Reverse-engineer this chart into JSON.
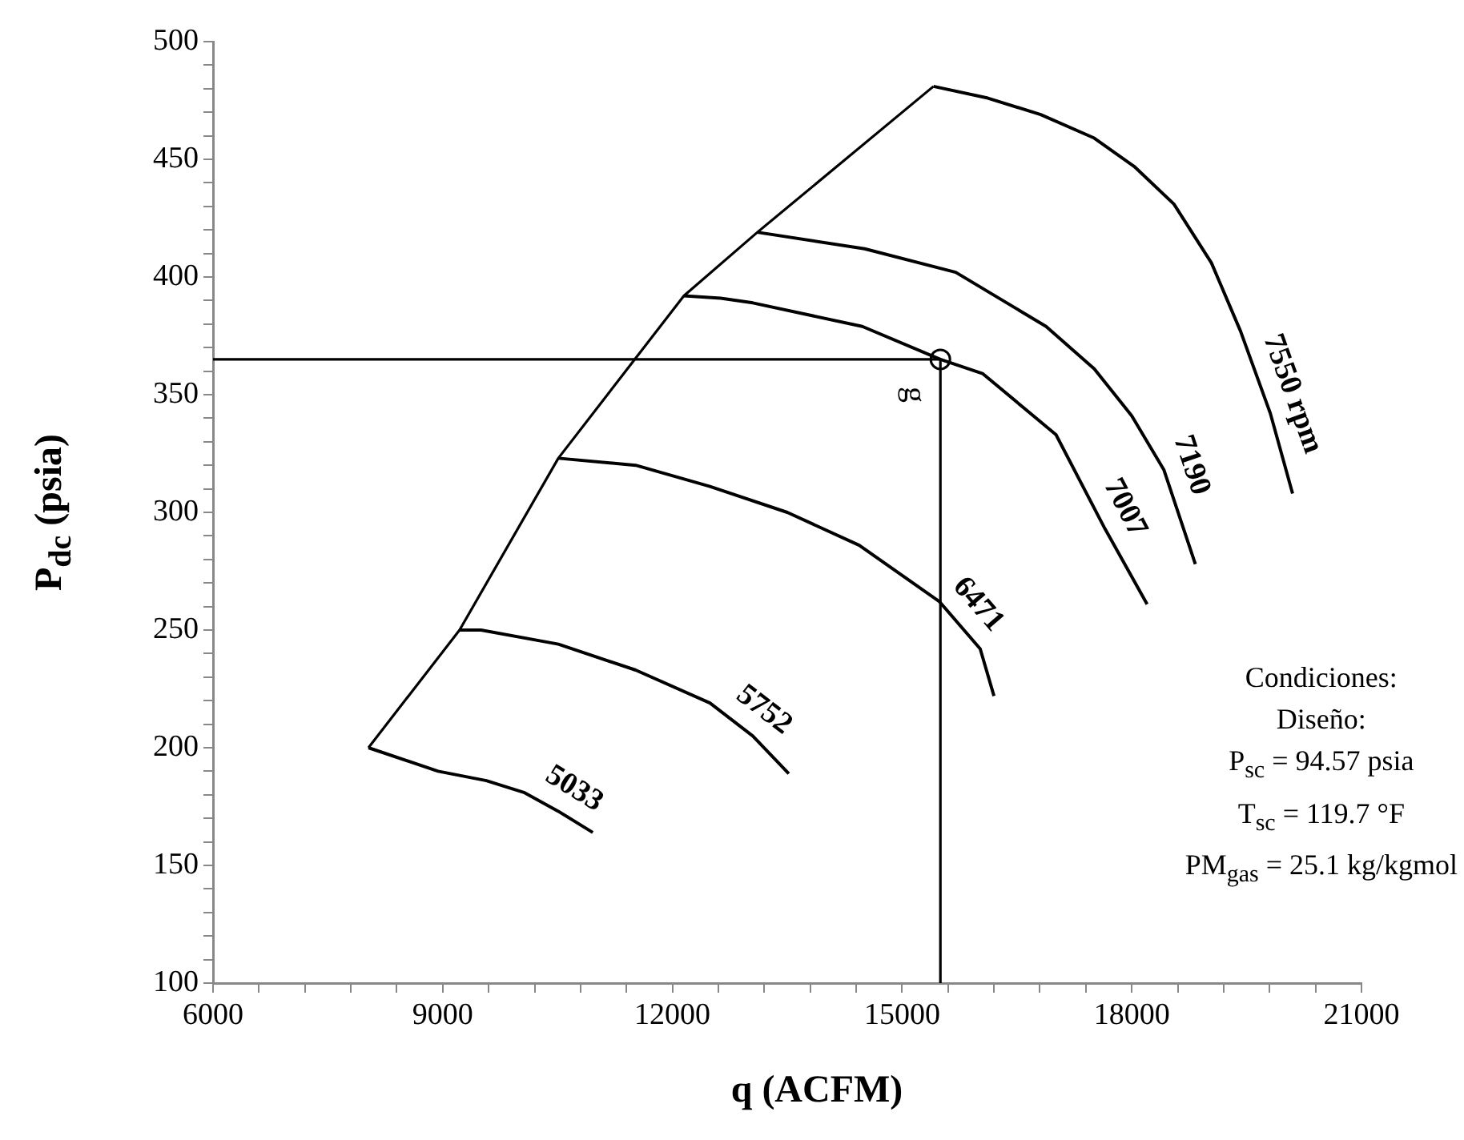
{
  "chart_data": {
    "type": "line",
    "xlabel": "q (ACFM)",
    "ylabel": "P$_{dc}$ (psia)",
    "xlim": [
      6000,
      21000
    ],
    "ylim": [
      100,
      500
    ],
    "xticks": [
      6000,
      {
        "value": 6600,
        "label": null
      },
      {
        "value": 7200,
        "label": null
      },
      {
        "value": 7800,
        "label": null
      },
      {
        "value": 8400,
        "label": null
      },
      9000,
      {
        "value": 9600,
        "label": null
      },
      {
        "value": 10200,
        "label": null
      },
      {
        "value": 10800,
        "label": null
      },
      {
        "value": 11400,
        "label": null
      },
      12000,
      {
        "value": 12600,
        "label": null
      },
      {
        "value": 13200,
        "label": null
      },
      {
        "value": 13800,
        "label": null
      },
      {
        "value": 14400,
        "label": null
      },
      15000,
      {
        "value": 15600,
        "label": null
      },
      {
        "value": 16200,
        "label": null
      },
      {
        "value": 16800,
        "label": null
      },
      {
        "value": 17400,
        "label": null
      },
      18000,
      {
        "value": 18600,
        "label": null
      },
      {
        "value": 19200,
        "label": null
      },
      {
        "value": 19800,
        "label": null
      },
      {
        "value": 20400,
        "label": null
      },
      21000
    ],
    "yticks": [
      100,
      {
        "value": 110,
        "label": null
      },
      {
        "value": 120,
        "label": null
      },
      {
        "value": 130,
        "label": null
      },
      {
        "value": 140,
        "label": null
      },
      150,
      {
        "value": 160,
        "label": null
      },
      {
        "value": 170,
        "label": null
      },
      {
        "value": 180,
        "label": null
      },
      {
        "value": 190,
        "label": null
      },
      200,
      {
        "value": 210,
        "label": null
      },
      {
        "value": 220,
        "label": null
      },
      {
        "value": 230,
        "label": null
      },
      {
        "value": 240,
        "label": null
      },
      250,
      {
        "value": 260,
        "label": null
      },
      {
        "value": 270,
        "label": null
      },
      {
        "value": 280,
        "label": null
      },
      {
        "value": 290,
        "label": null
      },
      300,
      {
        "value": 310,
        "label": null
      },
      {
        "value": 320,
        "label": null
      },
      {
        "value": 330,
        "label": null
      },
      {
        "value": 340,
        "label": null
      },
      350,
      {
        "value": 360,
        "label": null
      },
      {
        "value": 370,
        "label": null
      },
      {
        "value": 380,
        "label": null
      },
      {
        "value": 390,
        "label": null
      },
      400,
      {
        "value": 410,
        "label": null
      },
      {
        "value": 420,
        "label": null
      },
      {
        "value": 430,
        "label": null
      },
      {
        "value": 440,
        "label": null
      },
      450,
      {
        "value": 460,
        "label": null
      },
      {
        "value": 470,
        "label": null
      },
      {
        "value": 480,
        "label": null
      },
      {
        "value": 490,
        "label": null
      },
      500
    ],
    "grid": false,
    "marker": "none",
    "line_style": "solid",
    "series": [
      {
        "name": "5033",
        "color": "#000000",
        "x": [
          8030,
          8940,
          9570,
          10060,
          10510,
          10960
        ],
        "values": [
          200,
          190,
          186,
          181,
          173,
          164
        ]
      },
      {
        "name": "5752",
        "color": "#000000",
        "x": [
          9220,
          9500,
          10510,
          11520,
          12490,
          13050,
          13520
        ],
        "values": [
          250,
          250,
          244,
          233,
          219,
          205,
          189
        ]
      },
      {
        "name": "6471",
        "color": "#000000",
        "x": [
          10510,
          11520,
          12490,
          13500,
          14440,
          15490,
          16020,
          16200
        ],
        "values": [
          323,
          320,
          311,
          300,
          286,
          262,
          242,
          222
        ]
      },
      {
        "name": "7007",
        "color": "#000000",
        "x": [
          12150,
          12630,
          13050,
          14480,
          15500,
          16050,
          17010,
          17650,
          18200
        ],
        "values": [
          392,
          391,
          389,
          379,
          365,
          359,
          333,
          293,
          261
        ]
      },
      {
        "name": "7190",
        "color": "#000000",
        "x": [
          13110,
          14510,
          15700,
          16880,
          17510,
          18000,
          18420,
          18830
        ],
        "values": [
          419,
          412,
          402,
          379,
          361,
          341,
          318,
          278
        ]
      },
      {
        "name": "7550 rpm",
        "color": "#000000",
        "x": [
          15410,
          16120,
          16810,
          17510,
          18030,
          18550,
          19040,
          19420,
          19810,
          20100
        ],
        "values": [
          481,
          476,
          469,
          459,
          447,
          431,
          406,
          377,
          342,
          308
        ]
      },
      {
        "color": "#000000",
        "x": [
          8030,
          9220,
          10510,
          12150,
          13110,
          15410
        ],
        "values": [
          200,
          250,
          323,
          392,
          419,
          481
        ]
      },
      {
        "color": "#000000",
        "x": [
          6000,
          15500,
          15500
        ],
        "values": [
          365,
          365,
          100
        ]
      },
      {
        "type": "scatter",
        "marker": "circle",
        "color": "#000000",
        "x": [
          15500
        ],
        "values": [
          365
        ]
      }
    ],
    "annotations": [
      {
        "text": "g",
        "x": 15500,
        "y": 365
      },
      "Condiciones:",
      "Diseño:",
      "P$_{sc}$ = 94.57 psia",
      "T$_{sc}$ = 119.7 °F",
      "PM$_{gas}$ = 25.1 kg/kgmol"
    ]
  }
}
